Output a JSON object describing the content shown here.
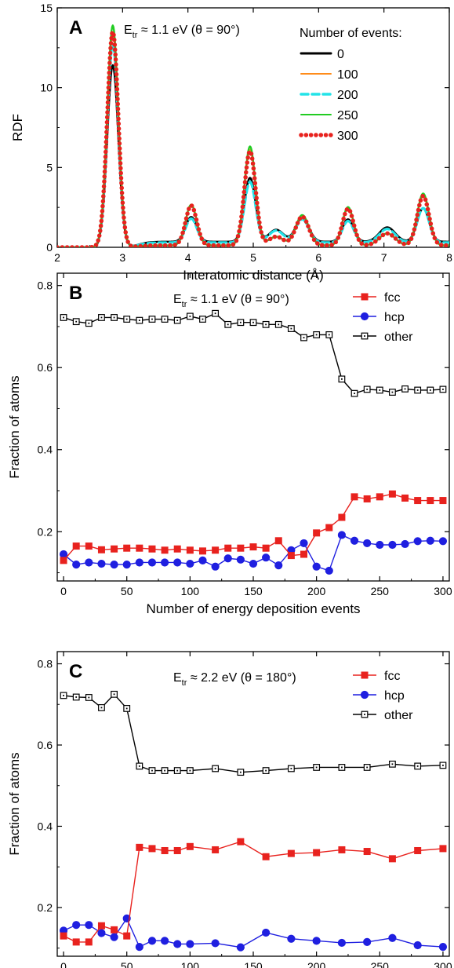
{
  "chart_data": [
    {
      "panel": "A",
      "type": "line",
      "annotation": {
        "main": "E",
        "sub": "tr",
        "rest": " ≈ 1.1 eV (θ = 90°)"
      },
      "xlabel": "Interatomic distance (Å)",
      "ylabel": "RDF",
      "xlim": [
        2,
        8
      ],
      "ylim": [
        0,
        15
      ],
      "xticks": [
        2,
        3,
        4,
        5,
        6,
        7,
        8
      ],
      "yticks": [
        0,
        5,
        10,
        15
      ],
      "legend_title": "Number of events:",
      "legend_position": "top-right",
      "grid": false,
      "peaks": {
        "centers": [
          2.85,
          4.05,
          4.95,
          5.35,
          5.75,
          6.45,
          7.05,
          7.6
        ],
        "widths": [
          0.085,
          0.085,
          0.085,
          0.11,
          0.1,
          0.085,
          0.12,
          0.09
        ]
      },
      "series": [
        {
          "name": "0",
          "color": "#000000",
          "style": "solid",
          "heights": [
            11.4,
            1.55,
            4.0,
            0.75,
            1.5,
            1.4,
            0.9,
            2.1
          ],
          "baseline_after": 0.35
        },
        {
          "name": "100",
          "color": "#ff8c1a",
          "style": "solid",
          "heights": [
            13.3,
            2.5,
            6.0,
            0.55,
            1.8,
            2.3,
            0.75,
            3.1
          ],
          "baseline_after": 0.12
        },
        {
          "name": "200",
          "color": "#22e3e8",
          "style": "dashed",
          "heights": [
            12.7,
            1.5,
            3.8,
            0.75,
            1.45,
            1.35,
            0.85,
            2.15
          ],
          "baseline_after": 0.3
        },
        {
          "name": "250",
          "color": "#22cc22",
          "style": "solid",
          "heights": [
            13.9,
            2.55,
            6.2,
            0.55,
            1.9,
            2.4,
            0.75,
            3.25
          ],
          "baseline_after": 0.12
        },
        {
          "name": "300",
          "color": "#e8221e",
          "style": "dotted",
          "heights": [
            13.5,
            2.5,
            5.9,
            0.55,
            1.8,
            2.3,
            0.75,
            3.1
          ],
          "baseline_after": 0.12
        }
      ]
    },
    {
      "panel": "B",
      "type": "line",
      "annotation": {
        "main": "E",
        "sub": "tr",
        "rest": " ≈ 1.1 eV (θ = 90°)"
      },
      "xlabel": "Number of energy deposition events",
      "ylabel": "Fraction of atoms",
      "xlim": [
        -5,
        305
      ],
      "ylim": [
        0.08,
        0.83
      ],
      "xticks": [
        0,
        50,
        100,
        150,
        200,
        250,
        300
      ],
      "yticks": [
        0.2,
        0.4,
        0.6,
        0.8
      ],
      "legend_position": "top-right",
      "grid": false,
      "x": [
        0,
        10,
        20,
        30,
        40,
        50,
        60,
        70,
        80,
        90,
        100,
        110,
        120,
        130,
        140,
        150,
        160,
        170,
        180,
        190,
        200,
        210,
        220,
        230,
        240,
        250,
        260,
        270,
        280,
        290,
        300
      ],
      "series": [
        {
          "name": "fcc",
          "color": "#e8221e",
          "marker": "square-filled",
          "values": [
            0.13,
            0.165,
            0.165,
            0.156,
            0.158,
            0.16,
            0.16,
            0.158,
            0.155,
            0.158,
            0.155,
            0.153,
            0.155,
            0.16,
            0.16,
            0.163,
            0.16,
            0.178,
            0.142,
            0.145,
            0.197,
            0.21,
            0.235,
            0.285,
            0.28,
            0.285,
            0.292,
            0.282,
            0.276,
            0.276,
            0.276
          ]
        },
        {
          "name": "hcp",
          "color": "#1f1fe0",
          "marker": "circle-filled",
          "values": [
            0.145,
            0.12,
            0.125,
            0.122,
            0.12,
            0.12,
            0.125,
            0.125,
            0.125,
            0.125,
            0.122,
            0.13,
            0.115,
            0.135,
            0.132,
            0.122,
            0.137,
            0.118,
            0.155,
            0.172,
            0.115,
            0.105,
            0.192,
            0.178,
            0.172,
            0.168,
            0.168,
            0.17,
            0.177,
            0.178,
            0.177
          ]
        },
        {
          "name": "other",
          "color": "#000000",
          "marker": "square-open",
          "values": [
            0.722,
            0.712,
            0.708,
            0.722,
            0.722,
            0.718,
            0.715,
            0.718,
            0.718,
            0.715,
            0.725,
            0.718,
            0.732,
            0.705,
            0.71,
            0.71,
            0.705,
            0.705,
            0.695,
            0.673,
            0.68,
            0.68,
            0.572,
            0.537,
            0.547,
            0.545,
            0.54,
            0.548,
            0.545,
            0.545,
            0.547
          ]
        }
      ]
    },
    {
      "panel": "C",
      "type": "line",
      "annotation": {
        "main": "E",
        "sub": "tr",
        "rest": " ≈ 2.2 eV (θ = 180°)"
      },
      "xlabel": "Number of energy deposition events",
      "ylabel": "Fraction of atoms",
      "xlim": [
        -5,
        305
      ],
      "ylim": [
        0.08,
        0.83
      ],
      "xticks": [
        0,
        50,
        100,
        150,
        200,
        250,
        300
      ],
      "yticks": [
        0.2,
        0.4,
        0.6,
        0.8
      ],
      "legend_position": "top-right",
      "grid": false,
      "x": [
        0,
        10,
        20,
        30,
        40,
        50,
        60,
        70,
        80,
        90,
        100,
        120,
        140,
        160,
        180,
        200,
        220,
        240,
        260,
        280,
        300
      ],
      "series": [
        {
          "name": "fcc",
          "color": "#e8221e",
          "marker": "square-filled",
          "values": [
            0.13,
            0.115,
            0.115,
            0.155,
            0.145,
            0.13,
            0.348,
            0.345,
            0.34,
            0.34,
            0.35,
            0.342,
            0.362,
            0.325,
            0.333,
            0.335,
            0.342,
            0.338,
            0.32,
            0.34,
            0.345
          ]
        },
        {
          "name": "hcp",
          "color": "#1f1fe0",
          "marker": "circle-filled",
          "values": [
            0.143,
            0.157,
            0.157,
            0.137,
            0.127,
            0.173,
            0.103,
            0.118,
            0.118,
            0.11,
            0.11,
            0.112,
            0.102,
            0.138,
            0.123,
            0.118,
            0.113,
            0.115,
            0.125,
            0.107,
            0.103
          ]
        },
        {
          "name": "other",
          "color": "#000000",
          "marker": "square-open",
          "values": [
            0.722,
            0.718,
            0.717,
            0.692,
            0.725,
            0.69,
            0.548,
            0.537,
            0.537,
            0.537,
            0.537,
            0.542,
            0.533,
            0.537,
            0.542,
            0.545,
            0.545,
            0.545,
            0.553,
            0.548,
            0.55
          ]
        }
      ]
    }
  ]
}
